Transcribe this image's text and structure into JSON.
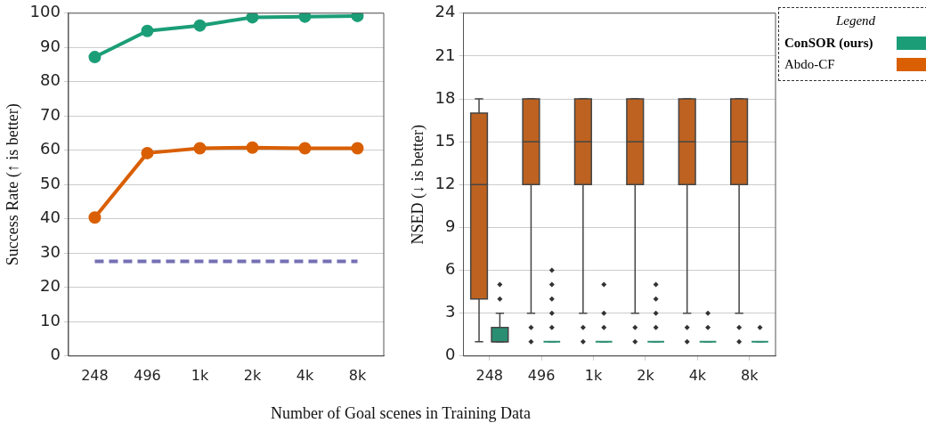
{
  "chart_data": [
    {
      "type": "line",
      "categories": [
        "248",
        "496",
        "1k",
        "2k",
        "4k",
        "8k"
      ],
      "xlabel": "Number of Goal scenes in Training Data",
      "ylabel": "Success Rate (↑ is better)",
      "ylim": [
        0,
        100
      ],
      "yticks": [
        0,
        10,
        20,
        30,
        40,
        50,
        60,
        70,
        80,
        90,
        100
      ],
      "grid": "y",
      "marker": "circle",
      "legend": "right",
      "legend_title": "Legend",
      "series": [
        {
          "name": "ConSOR (ours)",
          "color": "#1b9e77",
          "values": [
            87.2,
            94.8,
            96.4,
            98.8,
            99.0,
            99.2
          ]
        },
        {
          "name": "Abdo-CF",
          "color": "#d95f02",
          "values": [
            40.4,
            59.2,
            60.6,
            60.8,
            60.6,
            60.6
          ]
        },
        {
          "color": "#7570b3",
          "values": [
            27.6,
            27.6,
            27.6,
            27.6,
            27.6,
            27.6
          ],
          "line_style": "dashed",
          "marker": "none"
        }
      ]
    },
    {
      "type": "box",
      "categories": [
        "248",
        "496",
        "1k",
        "2k",
        "4k",
        "8k"
      ],
      "ylabel": "NSED (↓ is better)",
      "ylim": [
        0,
        24
      ],
      "yticks": [
        0,
        3,
        6,
        9,
        12,
        15,
        18,
        21,
        24
      ],
      "grid": "y",
      "series": [
        {
          "color": "#bd6220",
          "boxes": [
            {
              "low": 1,
              "q1": 4,
              "median": 12,
              "q3": 17,
              "high": 18
            },
            {
              "low": 3,
              "q1": 12,
              "median": 15,
              "q3": 18,
              "high": 18,
              "outliers": [
                1,
                2
              ]
            },
            {
              "low": 3,
              "q1": 12,
              "median": 15,
              "q3": 18,
              "high": 18,
              "outliers": [
                1,
                2
              ]
            },
            {
              "low": 3,
              "q1": 12,
              "median": 15,
              "q3": 18,
              "high": 18,
              "outliers": [
                1,
                2
              ]
            },
            {
              "low": 3,
              "q1": 12,
              "median": 15,
              "q3": 18,
              "high": 18,
              "outliers": [
                1,
                2
              ]
            },
            {
              "low": 3,
              "q1": 12,
              "median": 15,
              "q3": 18,
              "high": 18,
              "outliers": [
                1,
                2
              ]
            }
          ]
        },
        {
          "color": "#2a8f72",
          "boxes": [
            {
              "low": 1,
              "q1": 1,
              "median": 1,
              "q3": 2,
              "high": 3,
              "outliers": [
                4,
                5
              ]
            },
            {
              "low": 1,
              "q1": 1,
              "median": 1,
              "q3": 1,
              "high": 1,
              "outliers": [
                2,
                3,
                4,
                5,
                6
              ]
            },
            {
              "low": 1,
              "q1": 1,
              "median": 1,
              "q3": 1,
              "high": 1,
              "outliers": [
                2,
                3,
                5
              ]
            },
            {
              "low": 1,
              "q1": 1,
              "median": 1,
              "q3": 1,
              "high": 1,
              "outliers": [
                2,
                3,
                4,
                5
              ]
            },
            {
              "low": 1,
              "q1": 1,
              "median": 1,
              "q3": 1,
              "high": 1,
              "outliers": [
                2,
                3
              ]
            },
            {
              "low": 1,
              "q1": 1,
              "median": 1,
              "q3": 1,
              "high": 1,
              "outliers": [
                2
              ]
            }
          ]
        }
      ]
    }
  ]
}
